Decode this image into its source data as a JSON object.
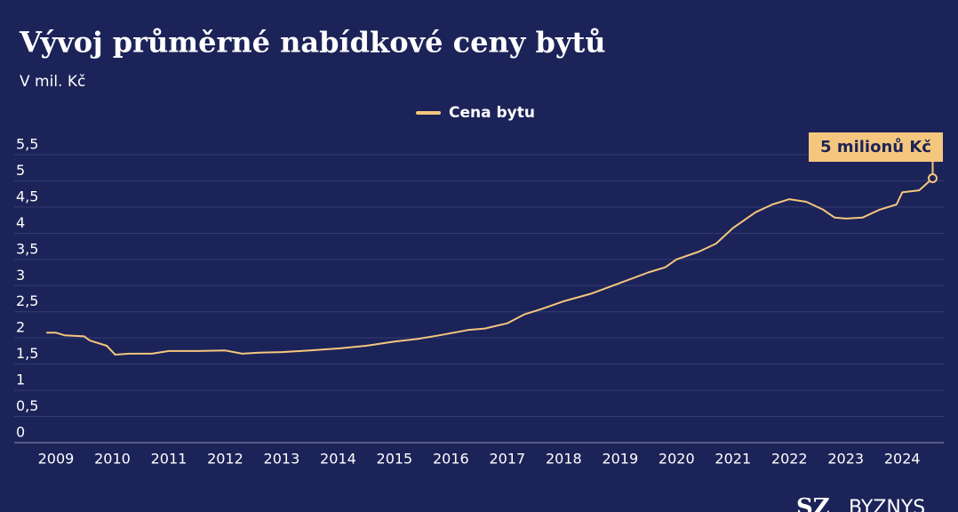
{
  "chart_data": {
    "type": "line",
    "title": "Vývoj průměrné nabídkové ceny bytů",
    "subtitle": "V mil. Kč",
    "annotation": "5 milionů Kč",
    "brand": [
      "SZ",
      "BYZNYS"
    ],
    "xlim": [
      2008.6,
      2024.8
    ],
    "xticks": [
      2009,
      2010,
      2011,
      2012,
      2013,
      2014,
      2015,
      2016,
      2017,
      2018,
      2019,
      2020,
      2021,
      2022,
      2023,
      2024
    ],
    "ylim": [
      0,
      5.5
    ],
    "yticks": [
      0,
      {
        "value": 0.5,
        "label": "0,5"
      },
      1,
      {
        "value": 1.5,
        "label": "1,5"
      },
      2,
      {
        "value": 2.5,
        "label": "2,5"
      },
      3,
      {
        "value": 3.5,
        "label": "3,5"
      },
      4,
      {
        "value": 4.5,
        "label": "4,5"
      },
      5,
      {
        "value": 5.5,
        "label": "5,5"
      }
    ],
    "grid": true,
    "legend": "top",
    "x": [
      2008.83,
      2009.0,
      2009.15,
      2009.5,
      2009.6,
      2009.9,
      2010.05,
      2010.3,
      2010.7,
      2011.0,
      2011.5,
      2012.0,
      2012.3,
      2012.6,
      2013.0,
      2013.5,
      2014.0,
      2014.5,
      2015.0,
      2015.4,
      2015.8,
      2016.3,
      2016.6,
      2017.0,
      2017.3,
      2017.6,
      2018.0,
      2018.5,
      2019.0,
      2019.5,
      2019.8,
      2020.0,
      2020.4,
      2020.7,
      2021.0,
      2021.4,
      2021.7,
      2022.0,
      2022.3,
      2022.6,
      2022.8,
      2023.0,
      2023.3,
      2023.6,
      2023.9,
      2024.0,
      2024.3,
      2024.54
    ],
    "series": [
      {
        "name": "Cena bytu",
        "color": "#f5c77e",
        "values": [
          2.1,
          2.1,
          2.05,
          2.03,
          1.95,
          1.85,
          1.68,
          1.7,
          1.7,
          1.75,
          1.75,
          1.76,
          1.7,
          1.72,
          1.73,
          1.76,
          1.8,
          1.85,
          1.93,
          1.98,
          2.05,
          2.15,
          2.18,
          2.28,
          2.45,
          2.55,
          2.7,
          2.85,
          3.05,
          3.25,
          3.35,
          3.5,
          3.65,
          3.8,
          4.1,
          4.4,
          4.55,
          4.65,
          4.6,
          4.45,
          4.3,
          4.28,
          4.3,
          4.45,
          4.55,
          4.78,
          4.82,
          5.05
        ]
      }
    ]
  }
}
